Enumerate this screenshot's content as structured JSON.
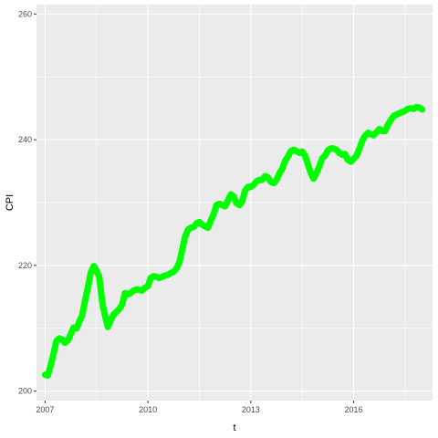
{
  "chart_data": {
    "type": "line",
    "title": "",
    "xlabel": "t",
    "ylabel": "CPI",
    "xlim": [
      2006.75,
      2018.3
    ],
    "ylim": [
      198.5,
      261.5
    ],
    "x_ticks": [
      2007,
      2010,
      2013,
      2016
    ],
    "x_tick_labels": [
      "2007",
      "2010",
      "2013",
      "2016"
    ],
    "y_ticks": [
      200,
      220,
      240,
      260
    ],
    "y_tick_labels": [
      "200",
      "220",
      "240",
      "260"
    ],
    "grid": true,
    "legend": "none",
    "series": [
      {
        "color": "#00ff00",
        "x": [
          2007.0,
          2007.08,
          2007.17,
          2007.25,
          2007.33,
          2007.42,
          2007.5,
          2007.58,
          2007.67,
          2007.75,
          2007.83,
          2007.92,
          2008.0,
          2008.08,
          2008.17,
          2008.25,
          2008.33,
          2008.42,
          2008.5,
          2008.58,
          2008.67,
          2008.75,
          2008.83,
          2008.92,
          2009.0,
          2009.08,
          2009.17,
          2009.25,
          2009.33,
          2009.42,
          2009.5,
          2009.58,
          2009.67,
          2009.75,
          2009.83,
          2009.92,
          2010.0,
          2010.08,
          2010.17,
          2010.25,
          2010.33,
          2010.42,
          2010.5,
          2010.58,
          2010.67,
          2010.75,
          2010.83,
          2010.92,
          2011.0,
          2011.08,
          2011.17,
          2011.25,
          2011.33,
          2011.42,
          2011.5,
          2011.58,
          2011.67,
          2011.75,
          2011.83,
          2011.92,
          2012.0,
          2012.08,
          2012.17,
          2012.25,
          2012.33,
          2012.42,
          2012.5,
          2012.58,
          2012.67,
          2012.75,
          2012.83,
          2012.92,
          2013.0,
          2013.08,
          2013.17,
          2013.25,
          2013.33,
          2013.42,
          2013.5,
          2013.58,
          2013.67,
          2013.75,
          2013.83,
          2013.92,
          2014.0,
          2014.08,
          2014.17,
          2014.25,
          2014.33,
          2014.42,
          2014.5,
          2014.58,
          2014.67,
          2014.75,
          2014.83,
          2014.92,
          2015.0,
          2015.08,
          2015.17,
          2015.25,
          2015.33,
          2015.42,
          2015.5,
          2015.58,
          2015.67,
          2015.75,
          2015.83,
          2015.92,
          2016.0,
          2016.08,
          2016.17,
          2016.25,
          2016.33,
          2016.42,
          2016.5,
          2016.58,
          2016.67,
          2016.75,
          2016.83,
          2016.92,
          2017.0,
          2017.08,
          2017.17,
          2017.25,
          2017.33,
          2017.42,
          2017.5,
          2017.58,
          2017.67,
          2017.75,
          2017.83,
          2017.92,
          2018.0
        ],
        "values": [
          202.6,
          202.5,
          204.2,
          206.0,
          208.0,
          208.4,
          208.2,
          207.7,
          208.1,
          209.1,
          210.1,
          210.0,
          211.1,
          212.0,
          214.5,
          216.5,
          218.8,
          219.9,
          219.2,
          218.2,
          214.0,
          212.0,
          210.2,
          211.3,
          212.2,
          212.6,
          213.1,
          213.8,
          215.6,
          215.4,
          215.6,
          216.0,
          216.2,
          216.1,
          216.0,
          216.5,
          216.7,
          218.0,
          218.3,
          218.2,
          218.0,
          218.2,
          218.4,
          218.5,
          218.8,
          219.0,
          219.5,
          220.5,
          222.5,
          224.5,
          225.7,
          226.0,
          226.1,
          226.7,
          226.9,
          226.5,
          226.2,
          226.0,
          227.1,
          228.2,
          229.6,
          229.8,
          229.6,
          229.4,
          230.3,
          231.3,
          231.0,
          229.9,
          229.6,
          230.2,
          231.9,
          232.5,
          232.5,
          232.8,
          233.4,
          233.6,
          233.6,
          234.2,
          234.0,
          233.3,
          233.1,
          233.6,
          234.6,
          235.4,
          236.6,
          237.3,
          238.2,
          238.4,
          238.2,
          237.9,
          238.1,
          237.5,
          236.0,
          234.7,
          233.8,
          234.7,
          235.8,
          237.0,
          237.5,
          238.3,
          238.6,
          238.6,
          238.4,
          237.9,
          237.6,
          237.7,
          236.8,
          236.5,
          237.0,
          237.4,
          238.6,
          239.8,
          240.6,
          241.1,
          240.9,
          240.7,
          241.2,
          241.7,
          241.4,
          241.4,
          242.4,
          243.1,
          243.8,
          244.0,
          244.2,
          244.4,
          244.6,
          244.9,
          245.0,
          244.9,
          245.2,
          245.1,
          244.8
        ]
      }
    ]
  }
}
